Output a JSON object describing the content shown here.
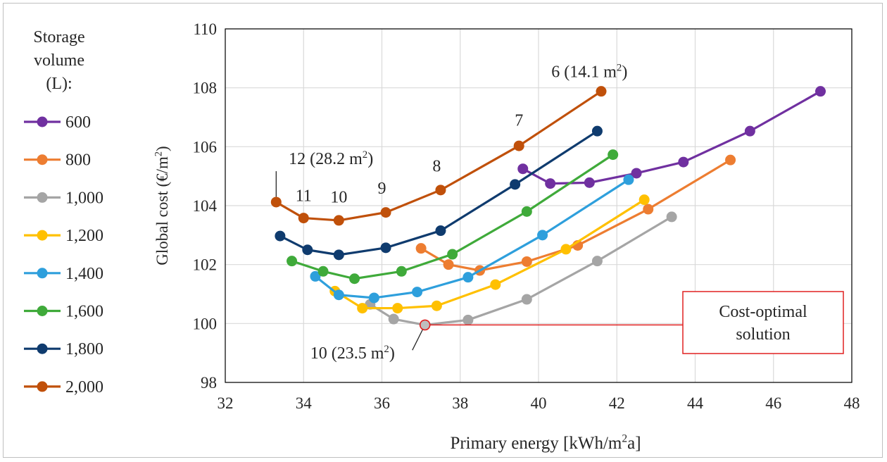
{
  "chart_data": {
    "type": "line",
    "title": "",
    "xlabel": "Primary energy [kWh/m²a]",
    "ylabel": "Global cost (€/m²)",
    "xlim": [
      32,
      48
    ],
    "ylim": [
      98,
      110
    ],
    "x_ticks": [
      "32",
      "34",
      "36",
      "38",
      "40",
      "42",
      "44",
      "46",
      "48"
    ],
    "y_ticks": [
      "98",
      "100",
      "102",
      "104",
      "106",
      "108",
      "110"
    ],
    "grid": true,
    "legend_title": "Storage volume (L):",
    "legend_title_lines": [
      "Storage",
      "volume",
      "(L):"
    ],
    "legend_position": "left",
    "series": [
      {
        "name": "600",
        "color": "#7030a0",
        "x": [
          39.6,
          40.3,
          41.3,
          42.5,
          43.7,
          45.4,
          47.2
        ],
        "y": [
          105.25,
          104.75,
          104.78,
          105.1,
          105.48,
          106.53,
          107.88
        ]
      },
      {
        "name": "800",
        "color": "#ed7d31",
        "x": [
          37.0,
          37.7,
          38.5,
          39.7,
          41.0,
          42.8,
          44.9
        ],
        "y": [
          102.55,
          102.0,
          101.8,
          102.1,
          102.65,
          103.88,
          105.55
        ]
      },
      {
        "name": "1,000",
        "color": "#a5a5a5",
        "x": [
          35.7,
          36.3,
          37.1,
          38.2,
          39.7,
          41.5,
          43.4
        ],
        "y": [
          100.65,
          100.15,
          99.95,
          100.12,
          100.82,
          102.12,
          103.62
        ]
      },
      {
        "name": "1,200",
        "color": "#ffc000",
        "x": [
          34.8,
          35.5,
          36.4,
          37.4,
          38.9,
          40.7,
          42.7
        ],
        "y": [
          101.1,
          100.52,
          100.52,
          100.6,
          101.32,
          102.52,
          104.2
        ]
      },
      {
        "name": "1,400",
        "color": "#2e9fdc",
        "x": [
          34.3,
          34.9,
          35.8,
          36.9,
          38.2,
          40.1,
          42.3
        ],
        "y": [
          101.6,
          100.97,
          100.87,
          101.07,
          101.57,
          103.0,
          104.88
        ]
      },
      {
        "name": "1,600",
        "color": "#3faa3a",
        "x": [
          33.7,
          34.5,
          35.3,
          36.5,
          37.8,
          39.7,
          41.9
        ],
        "y": [
          102.12,
          101.77,
          101.52,
          101.77,
          102.35,
          103.8,
          105.73
        ]
      },
      {
        "name": "1,800",
        "color": "#0f3b6e",
        "x": [
          33.4,
          34.1,
          34.9,
          36.1,
          37.5,
          39.4,
          41.5
        ],
        "y": [
          102.97,
          102.5,
          102.33,
          102.57,
          103.15,
          104.72,
          106.53
        ]
      },
      {
        "name": "2,000",
        "color": "#c0500a",
        "x": [
          33.3,
          34.0,
          34.9,
          36.1,
          37.5,
          39.5,
          41.6
        ],
        "y": [
          104.12,
          103.58,
          103.5,
          103.77,
          104.53,
          106.03,
          107.88
        ]
      }
    ],
    "point_labels": [
      {
        "text": "12 (28.2 m²)",
        "text_x": 34.7,
        "text_y": 105.6,
        "leader_to_x": 33.3,
        "leader_to_y": 104.3
      },
      {
        "text": "11",
        "text_x": 34.0,
        "text_y": 104.35
      },
      {
        "text": "10",
        "text_x": 34.9,
        "text_y": 104.3
      },
      {
        "text": "9",
        "text_x": 36.0,
        "text_y": 104.6
      },
      {
        "text": "8",
        "text_x": 37.4,
        "text_y": 105.35
      },
      {
        "text": "7",
        "text_x": 39.5,
        "text_y": 106.9
      },
      {
        "text": "6 (14.1 m²)",
        "text_x": 41.3,
        "text_y": 108.55
      },
      {
        "text": "10 (23.5 m²)",
        "text_x": 35.25,
        "text_y": 99.0,
        "leader_to_x": 37.05,
        "leader_to_y": 99.82
      }
    ],
    "annotation": {
      "text": "Cost-optimal solution",
      "text_lines": [
        "Cost-optimal",
        "solution"
      ],
      "point_x": 37.1,
      "point_y": 99.95,
      "color": "#e02020"
    }
  }
}
